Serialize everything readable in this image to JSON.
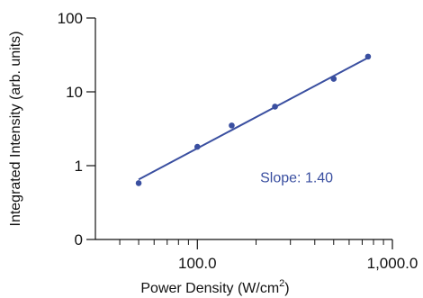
{
  "chart_data": {
    "type": "scatter",
    "xscale": "log",
    "yscale": "log",
    "xlim": [
      30,
      1000
    ],
    "ylim": [
      0.1,
      100
    ],
    "xlabel": "Power Density (W/cm",
    "xlabel_superscript": "2",
    "xlabel_close": ")",
    "ylabel": "Integrated Intensity (arb. units)",
    "x_tick_labels": [
      {
        "value": 100,
        "label": "100.0"
      },
      {
        "value": 1000,
        "label": "1,000.0"
      }
    ],
    "y_tick_labels": [
      {
        "value": 0.1,
        "label": "0"
      },
      {
        "value": 1,
        "label": "1"
      },
      {
        "value": 10,
        "label": "10"
      },
      {
        "value": 100,
        "label": "100"
      }
    ],
    "series": [
      {
        "points": [
          {
            "x": 50,
            "y": 0.58
          },
          {
            "x": 100,
            "y": 1.8
          },
          {
            "x": 150,
            "y": 3.5
          },
          {
            "x": 250,
            "y": 6.3
          },
          {
            "x": 500,
            "y": 15
          },
          {
            "x": 750,
            "y": 30
          }
        ],
        "color": "#3a4fa0"
      }
    ],
    "fit_line": {
      "x": [
        50,
        750
      ],
      "y": [
        0.65,
        29
      ],
      "color": "#3a4fa0"
    },
    "annotation": {
      "text": "Slope: 1.40",
      "color": "#3a4fa0"
    },
    "grid": false
  }
}
